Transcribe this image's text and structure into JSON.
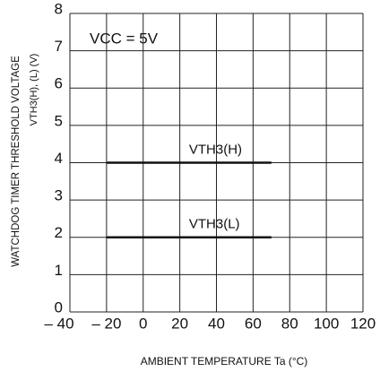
{
  "chart_data": {
    "type": "line",
    "y_label": "WATCHDOG TIMER THRESHOLD VOLTAGE",
    "y_label_2": "VTH3(H), (L) (V)",
    "x_label": "AMBIENT TEMPERATURE Ta (°C)",
    "annotation": "VCC = 5V",
    "x": [
      -20,
      70
    ],
    "series": [
      {
        "name": "VTH3(H)",
        "color": "#111111",
        "values": [
          4,
          4
        ]
      },
      {
        "name": "VTH3(L)",
        "color": "#111111",
        "values": [
          2,
          2
        ]
      }
    ],
    "xlim": [
      -40,
      120
    ],
    "xticks": [
      {
        "value": -40,
        "label": "– 40"
      },
      {
        "value": -20,
        "label": "– 20"
      },
      0,
      20,
      40,
      60,
      80,
      100,
      120
    ],
    "ylim": [
      0,
      8
    ],
    "yticks": [
      0,
      1,
      2,
      3,
      4,
      5,
      6,
      7,
      8
    ],
    "grid": true
  }
}
